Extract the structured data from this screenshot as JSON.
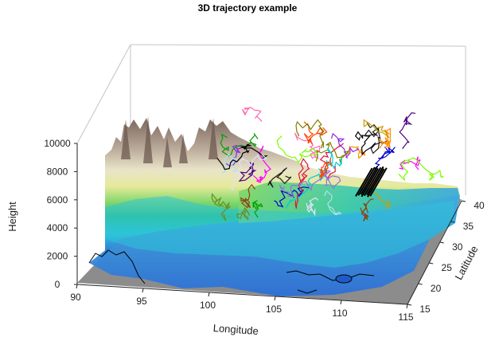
{
  "chart_data": {
    "type": "surface3d",
    "title": "3D trajectory example",
    "xlabel": "Longitude",
    "ylabel": "Latitude",
    "zlabel": "Height",
    "xlim": [
      90,
      115
    ],
    "ylim": [
      15,
      40
    ],
    "zlim": [
      0,
      10000
    ],
    "x_ticks": [
      "90",
      "95",
      "100",
      "105",
      "110",
      "115"
    ],
    "y_ticks": [
      "15",
      "20",
      "25",
      "30",
      "35",
      "40"
    ],
    "z_ticks": [
      "0",
      "2000",
      "4000",
      "6000",
      "8000",
      "10000"
    ],
    "surface": "terrain elevation",
    "trajectory_region": {
      "longitude": [
        98,
        112
      ],
      "latitude": [
        26,
        36
      ],
      "height": [
        2500,
        8500
      ]
    },
    "trajectory_count_estimate": 40,
    "colors": {
      "terrain_high": "#8a7468",
      "terrain_mid": "#d8d0a8",
      "terrain_yellow": "#e6ea9a",
      "terrain_green": "#46c46e",
      "terrain_cyan": "#2ec4d8",
      "terrain_blue": "#2f7ee0",
      "ocean": "#8c8c8c",
      "axis_box": "#c0c0c0"
    }
  }
}
